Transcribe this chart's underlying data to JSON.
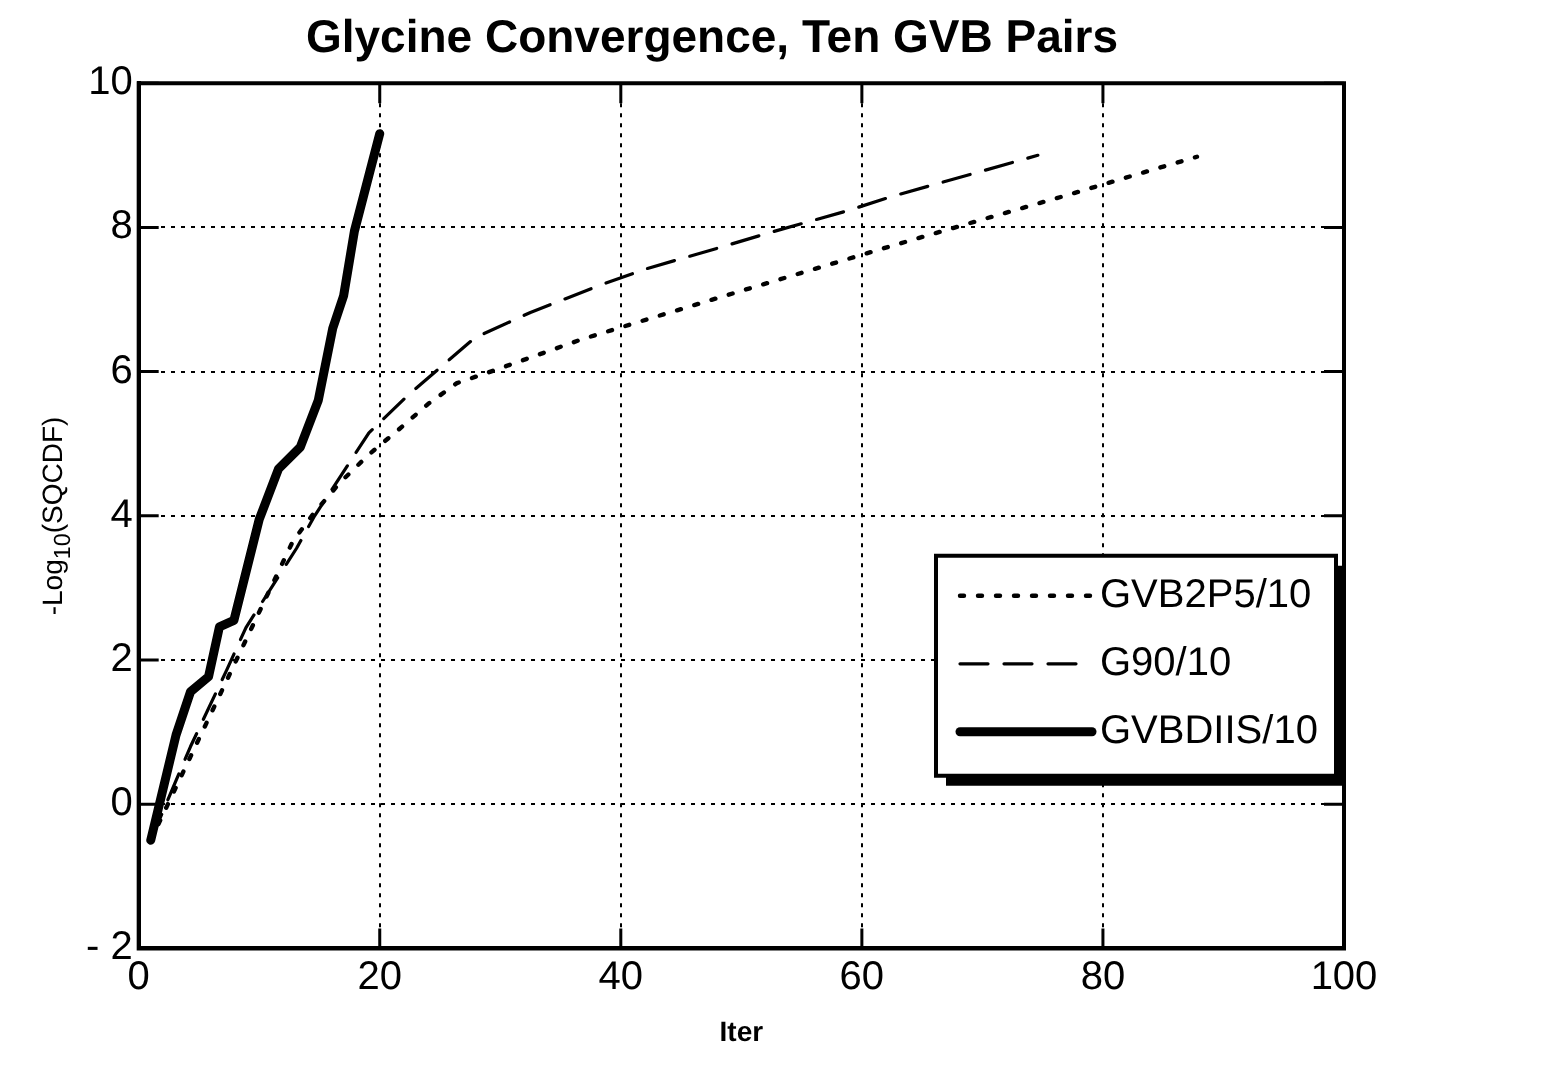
{
  "chart_data": {
    "type": "line",
    "title": "Glycine Convergence, Ten GVB Pairs",
    "xlabel": "Iter",
    "ylabel": "-Log$_{10}$(SQCDF)",
    "xlim": [
      0,
      100
    ],
    "xticks": [
      0,
      20,
      40,
      60,
      80,
      100
    ],
    "ylim": [
      -2,
      10
    ],
    "yticks": [
      {
        "value": -2,
        "label": "- 2"
      },
      0,
      2,
      4,
      6,
      8,
      10
    ],
    "grid": true,
    "legend": "right",
    "marker": "none",
    "series": [
      {
        "name": "GVB2P5/10",
        "color": "#000000",
        "line_style": "dotted",
        "x": [
          1,
          12.8,
          14.6,
          16.7,
          19.1,
          21.6,
          24,
          26.4,
          29.2,
          36.8,
          41.7,
          49.6,
          57,
          62.2,
          69.8,
          77.5,
          82.7,
          87.8
        ],
        "values": [
          -0.5,
          3.65,
          4.05,
          4.46,
          4.85,
          5.2,
          5.55,
          5.84,
          6.0,
          6.45,
          6.7,
          7.1,
          7.47,
          7.73,
          8.1,
          8.47,
          8.73,
          8.98
        ]
      },
      {
        "name": "G90/10",
        "color": "#000000",
        "line_style": "dashed",
        "x": [
          1,
          4.3,
          7.3,
          8.9,
          13.1,
          14.6,
          19.1,
          22.4,
          27.9,
          32.5,
          38.3,
          42.2,
          48.4,
          52.4,
          58.8,
          62.5,
          68.9,
          74.6
        ],
        "values": [
          -0.5,
          0.8,
          1.86,
          2.45,
          3.55,
          4.0,
          5.15,
          5.68,
          6.47,
          6.82,
          7.2,
          7.43,
          7.73,
          7.93,
          8.23,
          8.43,
          8.73,
          9.0
        ]
      },
      {
        "name": "GVBDIIS/10",
        "color": "#000000",
        "line_style": "solid",
        "x": [
          1,
          3.1,
          4.3,
          5.8,
          6.7,
          7.9,
          10,
          11.6,
          13.4,
          14.9,
          16.1,
          17,
          17.9,
          20
        ],
        "values": [
          -0.5,
          0.96,
          1.56,
          1.77,
          2.46,
          2.55,
          3.95,
          4.65,
          4.95,
          5.6,
          6.6,
          7.05,
          7.95,
          9.3
        ]
      }
    ]
  }
}
